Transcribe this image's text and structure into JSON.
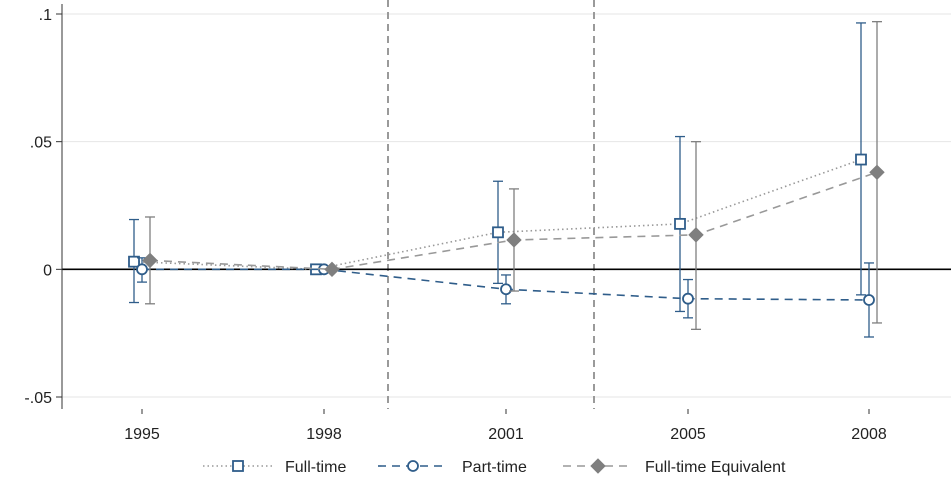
{
  "chart_data": {
    "type": "line",
    "title": "",
    "xlabel": "",
    "ylabel": "",
    "categories": [
      "1995",
      "1998",
      "2001",
      "2005",
      "2008"
    ],
    "yticks": [
      {
        "value": 0.1,
        "label": ".1"
      },
      {
        "value": 0.05,
        "label": ".05"
      },
      {
        "value": 0,
        "label": "0"
      },
      {
        "value": -0.05,
        "label": "-.05"
      }
    ],
    "ylim": [
      -0.05,
      0.1
    ],
    "grid": true,
    "reference_line_y": 0,
    "vertical_dashed_lines_between": [
      [
        1,
        2
      ],
      [
        2,
        3
      ]
    ],
    "legend_position": "bottom",
    "series": [
      {
        "name": "Full-time",
        "marker": "hollow-square",
        "line_style": "dotted",
        "color": "#2f5d8a",
        "line_color": "#999999",
        "values": [
          0.003,
          0.0,
          0.0145,
          0.0178,
          0.043
        ],
        "ci_low": [
          -0.013,
          0.0,
          -0.0055,
          -0.0165,
          -0.01
        ],
        "ci_high": [
          0.0195,
          0.0,
          0.0345,
          0.052,
          0.0965
        ]
      },
      {
        "name": "Part-time",
        "marker": "hollow-circle",
        "line_style": "dashed",
        "color": "#2f5d8a",
        "line_color": "#2f5d8a",
        "values": [
          0.0,
          0.0,
          -0.0078,
          -0.0115,
          -0.012
        ],
        "ci_low": [
          -0.005,
          0.0,
          -0.0135,
          -0.019,
          -0.0265
        ],
        "ci_high": [
          0.0045,
          0.0,
          -0.0022,
          -0.004,
          0.0025
        ]
      },
      {
        "name": "Full-time Equivalent",
        "marker": "filled-diamond",
        "line_style": "dashed",
        "color": "#7f7f7f",
        "line_color": "#999999",
        "values": [
          0.0035,
          0.0,
          0.0115,
          0.0135,
          0.038
        ],
        "ci_low": [
          -0.0135,
          0.0,
          -0.0085,
          -0.0235,
          -0.021
        ],
        "ci_high": [
          0.0205,
          0.0,
          0.0315,
          0.05,
          0.097
        ]
      }
    ]
  }
}
